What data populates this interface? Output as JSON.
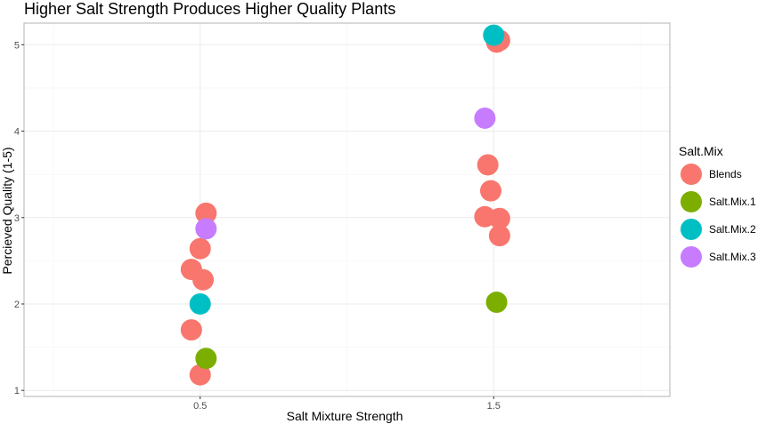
{
  "chart_data": {
    "type": "scatter",
    "title": "Higher Salt Strength Produces Higher Quality Plants",
    "xlabel": "Salt Mixture Strength",
    "ylabel": "Percieved Quality (1-5)",
    "x_ticks": [
      "0.5",
      "1.5"
    ],
    "y_ticks": [
      "1",
      "2",
      "3",
      "4",
      "5"
    ],
    "xlim": [
      -0.1,
      2.1
    ],
    "ylim": [
      0.93,
      5.25
    ],
    "grid": true,
    "legend": {
      "title": "Salt.Mix",
      "position": "right",
      "entries": [
        {
          "name": "Blends",
          "color": "#F8766D"
        },
        {
          "name": "Salt.Mix.1",
          "color": "#7CAE00"
        },
        {
          "name": "Salt.Mix.2",
          "color": "#00BFC4"
        },
        {
          "name": "Salt.Mix.3",
          "color": "#C77CFF"
        }
      ]
    },
    "series": [
      {
        "name": "Blends",
        "points": [
          {
            "x": 0.52,
            "y": 3.05
          },
          {
            "x": 0.5,
            "y": 2.64
          },
          {
            "x": 0.47,
            "y": 2.4
          },
          {
            "x": 0.51,
            "y": 2.28
          },
          {
            "x": 0.47,
            "y": 1.7
          },
          {
            "x": 0.5,
            "y": 1.18
          },
          {
            "x": 1.52,
            "y": 5.05
          },
          {
            "x": 1.51,
            "y": 5.03
          },
          {
            "x": 1.48,
            "y": 3.61
          },
          {
            "x": 1.49,
            "y": 3.31
          },
          {
            "x": 1.47,
            "y": 3.01
          },
          {
            "x": 1.52,
            "y": 2.99
          },
          {
            "x": 1.52,
            "y": 2.79
          }
        ]
      },
      {
        "name": "Salt.Mix.1",
        "points": [
          {
            "x": 0.52,
            "y": 1.37
          },
          {
            "x": 1.51,
            "y": 2.02
          }
        ]
      },
      {
        "name": "Salt.Mix.2",
        "points": [
          {
            "x": 0.5,
            "y": 2.0
          },
          {
            "x": 1.5,
            "y": 5.11
          }
        ]
      },
      {
        "name": "Salt.Mix.3",
        "points": [
          {
            "x": 0.52,
            "y": 2.87
          },
          {
            "x": 1.47,
            "y": 4.15
          }
        ]
      }
    ]
  }
}
